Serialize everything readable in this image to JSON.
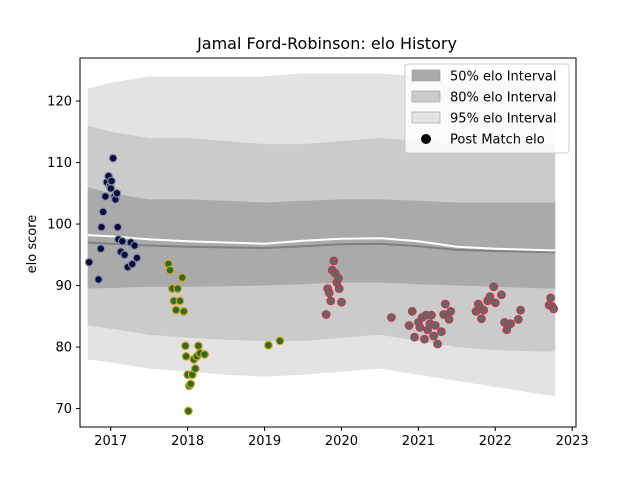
{
  "chart_data": {
    "type": "line",
    "title": "Jamal Ford-Robinson: elo History",
    "xlabel": "",
    "ylabel": "elo score",
    "xlim": [
      2016.6,
      2023.05
    ],
    "ylim": [
      67,
      127
    ],
    "xticks": [
      2017,
      2018,
      2019,
      2020,
      2021,
      2022,
      2023
    ],
    "yticks": [
      70,
      80,
      90,
      100,
      110,
      120
    ],
    "grid": false,
    "legend_position": "top-right",
    "legend": [
      "50% elo Interval",
      "80% elo Interval",
      "95% elo Interval",
      "Post Match elo"
    ],
    "colors": {
      "band50": "#aaaaaa",
      "band80": "#cbcbcb",
      "band95": "#e3e3e3",
      "mean_line": "#ffffff",
      "median_line": "#808080",
      "point_group_1": "#0a0a3c",
      "point_group_1_edge": "#8890a8",
      "point_group_2": "#2e6b2a",
      "point_group_2_edge": "#d4a51c",
      "point_group_3": "#666666",
      "point_group_3_edge": "#c0384a"
    },
    "bands": {
      "x": [
        2016.7,
        2017.0,
        2017.5,
        2018.0,
        2018.5,
        2019.0,
        2019.5,
        2020.0,
        2020.5,
        2021.0,
        2021.5,
        2022.0,
        2022.5,
        2022.78
      ],
      "mean": [
        98.2,
        98.0,
        97.5,
        97.2,
        97.0,
        96.8,
        97.3,
        97.6,
        97.7,
        97.2,
        96.3,
        96.0,
        95.8,
        95.7
      ],
      "median": [
        97.0,
        96.8,
        96.5,
        96.3,
        96.2,
        96.1,
        96.4,
        96.7,
        96.8,
        96.4,
        95.8,
        95.6,
        95.5,
        95.4
      ],
      "lo50": [
        89.5,
        89.6,
        89.8,
        89.8,
        89.9,
        90.0,
        90.2,
        90.5,
        90.5,
        90.2,
        90.0,
        89.8,
        89.6,
        89.5
      ],
      "hi50": [
        106.0,
        105.0,
        104.0,
        104.0,
        103.8,
        103.5,
        103.8,
        104.0,
        104.0,
        103.8,
        103.5,
        103.5,
        103.5,
        103.5
      ],
      "lo80": [
        83.5,
        83.0,
        82.0,
        81.5,
        81.2,
        81.0,
        81.0,
        81.5,
        82.0,
        81.0,
        80.0,
        79.5,
        79.3,
        79.3
      ],
      "hi80": [
        116.0,
        115.0,
        114.0,
        114.0,
        113.5,
        113.0,
        113.0,
        113.5,
        114.0,
        113.5,
        113.0,
        113.0,
        113.0,
        113.0
      ],
      "lo95": [
        78.0,
        77.5,
        76.5,
        76.0,
        75.5,
        75.2,
        75.5,
        76.0,
        76.5,
        75.5,
        74.5,
        73.5,
        72.5,
        72.0
      ],
      "hi95": [
        122.0,
        123.0,
        124.0,
        124.0,
        124.0,
        124.0,
        124.5,
        124.5,
        124.5,
        124.0,
        123.5,
        123.5,
        123.0,
        123.0
      ]
    },
    "series": [
      {
        "name": "Post Match elo",
        "group": 1,
        "points": [
          [
            2016.72,
            93.8
          ],
          [
            2016.84,
            91.0
          ],
          [
            2016.87,
            96.0
          ],
          [
            2016.88,
            99.5
          ],
          [
            2016.9,
            102.0
          ],
          [
            2016.93,
            104.5
          ],
          [
            2016.95,
            106.8
          ],
          [
            2016.97,
            107.8
          ],
          [
            2016.99,
            106.2
          ],
          [
            2017.0,
            105.8
          ],
          [
            2017.01,
            107.0
          ],
          [
            2017.03,
            110.7
          ],
          [
            2017.05,
            104.5
          ],
          [
            2017.06,
            104.0
          ],
          [
            2017.08,
            105.0
          ],
          [
            2017.09,
            99.5
          ],
          [
            2017.1,
            97.5
          ],
          [
            2017.13,
            95.5
          ],
          [
            2017.15,
            97.2
          ],
          [
            2017.18,
            95.0
          ],
          [
            2017.22,
            93.0
          ],
          [
            2017.26,
            97.0
          ],
          [
            2017.28,
            93.5
          ],
          [
            2017.31,
            96.5
          ],
          [
            2017.34,
            94.5
          ]
        ]
      },
      {
        "name": "Post Match elo",
        "group": 2,
        "points": [
          [
            2017.75,
            93.5
          ],
          [
            2017.77,
            92.5
          ],
          [
            2017.8,
            89.5
          ],
          [
            2017.82,
            87.5
          ],
          [
            2017.85,
            86.0
          ],
          [
            2017.87,
            89.5
          ],
          [
            2017.9,
            87.5
          ],
          [
            2017.93,
            91.3
          ],
          [
            2017.95,
            85.8
          ],
          [
            2017.97,
            80.2
          ],
          [
            2017.98,
            78.5
          ],
          [
            2018.0,
            75.5
          ],
          [
            2018.01,
            69.6
          ],
          [
            2018.02,
            73.7
          ],
          [
            2018.04,
            74.0
          ],
          [
            2018.06,
            75.5
          ],
          [
            2018.08,
            78.0
          ],
          [
            2018.1,
            76.5
          ],
          [
            2018.12,
            78.5
          ],
          [
            2018.14,
            80.2
          ],
          [
            2018.16,
            79.0
          ],
          [
            2018.22,
            78.8
          ],
          [
            2019.05,
            80.3
          ],
          [
            2019.2,
            81.0
          ]
        ]
      },
      {
        "name": "Post Match elo",
        "group": 3,
        "points": [
          [
            2019.8,
            85.3
          ],
          [
            2019.82,
            89.5
          ],
          [
            2019.84,
            88.8
          ],
          [
            2019.86,
            87.5
          ],
          [
            2019.88,
            92.5
          ],
          [
            2019.9,
            94.0
          ],
          [
            2019.92,
            92.0
          ],
          [
            2019.94,
            90.5
          ],
          [
            2019.96,
            91.2
          ],
          [
            2019.97,
            89.5
          ],
          [
            2020.0,
            87.3
          ],
          [
            2020.65,
            84.8
          ],
          [
            2020.88,
            83.5
          ],
          [
            2020.92,
            85.8
          ],
          [
            2020.95,
            81.6
          ],
          [
            2021.0,
            84.0
          ],
          [
            2021.02,
            83.2
          ],
          [
            2021.05,
            84.8
          ],
          [
            2021.08,
            81.3
          ],
          [
            2021.1,
            85.2
          ],
          [
            2021.12,
            82.8
          ],
          [
            2021.15,
            83.8
          ],
          [
            2021.17,
            85.2
          ],
          [
            2021.2,
            81.8
          ],
          [
            2021.22,
            83.5
          ],
          [
            2021.25,
            80.5
          ],
          [
            2021.3,
            82.5
          ],
          [
            2021.33,
            85.3
          ],
          [
            2021.35,
            87.0
          ],
          [
            2021.4,
            84.5
          ],
          [
            2021.42,
            85.8
          ],
          [
            2021.75,
            85.8
          ],
          [
            2021.78,
            87.0
          ],
          [
            2021.8,
            86.5
          ],
          [
            2021.82,
            84.6
          ],
          [
            2021.85,
            86.0
          ],
          [
            2021.9,
            87.5
          ],
          [
            2021.93,
            88.2
          ],
          [
            2021.98,
            89.8
          ],
          [
            2022.0,
            87.2
          ],
          [
            2022.08,
            88.5
          ],
          [
            2022.12,
            84.0
          ],
          [
            2022.15,
            82.8
          ],
          [
            2022.2,
            83.8
          ],
          [
            2022.3,
            84.5
          ],
          [
            2022.33,
            86.0
          ],
          [
            2022.7,
            86.8
          ],
          [
            2022.72,
            88.0
          ],
          [
            2022.74,
            86.6
          ],
          [
            2022.76,
            86.2
          ]
        ]
      }
    ]
  }
}
